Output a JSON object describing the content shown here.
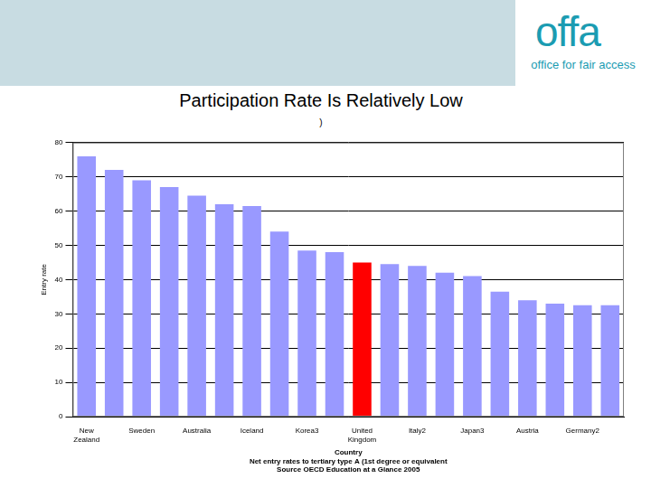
{
  "header": {
    "logo": "offa",
    "tagline": "office for fair access"
  },
  "chart_data": {
    "type": "bar",
    "title": "Participation Rate Is Relatively Low",
    "subtitle": ")",
    "xlabel": "Country",
    "ylabel": "Entry rate",
    "annotations": [
      "Net entry rates to tertiary type A (1st degree or equivalent",
      "Source OECD Education at a Glance 2005"
    ],
    "categories": [
      "New Zealand",
      null,
      "Sweden",
      null,
      "Australia",
      null,
      "Iceland",
      null,
      "Korea3",
      null,
      "United Kingdom",
      null,
      "Italy2",
      null,
      "Japan3",
      null,
      "Austria",
      null,
      "Germany2",
      null
    ],
    "values": [
      76,
      72,
      69,
      67,
      64.5,
      62,
      61.5,
      54,
      48.5,
      48,
      45,
      44.5,
      44,
      42,
      41,
      36.5,
      34,
      33,
      32.5,
      32.5
    ],
    "colors": [
      "#9999ff",
      "#9999ff",
      "#9999ff",
      "#9999ff",
      "#9999ff",
      "#9999ff",
      "#9999ff",
      "#9999ff",
      "#9999ff",
      "#9999ff",
      "#ff0000",
      "#9999ff",
      "#9999ff",
      "#9999ff",
      "#9999ff",
      "#9999ff",
      "#9999ff",
      "#9999ff",
      "#9999ff",
      "#9999ff"
    ],
    "ylim": [
      0,
      80
    ],
    "yticks": [
      0,
      10,
      20,
      30,
      40,
      50,
      60,
      70,
      80
    ],
    "grid": true
  }
}
